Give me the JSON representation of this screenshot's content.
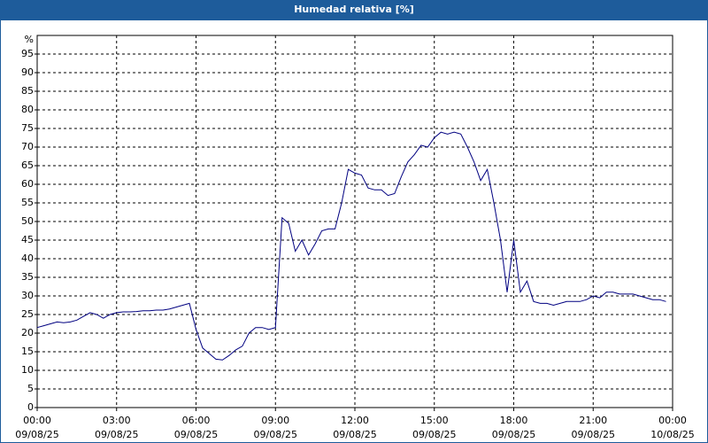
{
  "chart_data": {
    "type": "line",
    "title": "Humedad relativa [%]",
    "y_unit": "%",
    "xlim": [
      0,
      24
    ],
    "xticks": [
      {
        "value": 0,
        "label": "00:00"
      },
      {
        "value": 3,
        "label": "03:00"
      },
      {
        "value": 6,
        "label": "06:00"
      },
      {
        "value": 9,
        "label": "09:00"
      },
      {
        "value": 12,
        "label": "12:00"
      },
      {
        "value": 15,
        "label": "15:00"
      },
      {
        "value": 18,
        "label": "18:00"
      },
      {
        "value": 21,
        "label": "21:00"
      },
      {
        "value": 24,
        "label": "00:00"
      }
    ],
    "xtick_dates": [
      "09/08/25",
      "09/08/25",
      "09/08/25",
      "09/08/25",
      "09/08/25",
      "09/08/25",
      "09/08/25",
      "09/08/25",
      "10/08/25"
    ],
    "ylim": [
      0,
      100
    ],
    "yticks": [
      0,
      5,
      10,
      15,
      20,
      25,
      30,
      35,
      40,
      45,
      50,
      55,
      60,
      65,
      70,
      75,
      80,
      85,
      90,
      95
    ],
    "grid": true,
    "series": [
      {
        "color": "#000080",
        "x": [
          0,
          0.25,
          0.5,
          0.75,
          1,
          1.25,
          1.5,
          1.75,
          2,
          2.25,
          2.5,
          2.75,
          3,
          3.25,
          3.5,
          3.75,
          4,
          4.25,
          4.5,
          4.75,
          5,
          5.25,
          5.5,
          5.75,
          6,
          6.25,
          6.5,
          6.75,
          7,
          7.25,
          7.5,
          7.75,
          8,
          8.25,
          8.5,
          8.75,
          9,
          9.25,
          9.5,
          9.75,
          10,
          10.25,
          10.5,
          10.75,
          11,
          11.25,
          11.5,
          11.75,
          12,
          12.25,
          12.5,
          12.75,
          13,
          13.25,
          13.5,
          13.75,
          14,
          14.25,
          14.5,
          14.75,
          15,
          15.25,
          15.5,
          15.75,
          16,
          16.25,
          16.5,
          16.75,
          17,
          17.25,
          17.5,
          17.75,
          18,
          18.25,
          18.5,
          18.75,
          19,
          19.25,
          19.5,
          19.75,
          20,
          20.25,
          20.5,
          20.75,
          21,
          21.25,
          21.5,
          21.75,
          22,
          22.25,
          22.5,
          22.75,
          23,
          23.25,
          23.5,
          23.75
        ],
        "values": [
          21.5,
          22,
          22.5,
          23,
          22.8,
          23,
          23.5,
          24.5,
          25.5,
          25,
          24,
          25,
          25.5,
          25.7,
          25.7,
          25.8,
          26,
          26,
          26.2,
          26.2,
          26.5,
          27,
          27.5,
          28,
          21,
          16,
          14.5,
          13,
          12.8,
          14,
          15.5,
          16.5,
          20,
          21.5,
          21.5,
          21,
          21.5,
          51,
          49.5,
          42,
          45,
          41,
          44,
          47.5,
          48,
          48,
          55,
          64,
          63,
          62.5,
          59,
          58.5,
          58.5,
          57,
          57.5,
          62,
          66,
          68,
          70.5,
          70,
          72.5,
          74,
          73.5,
          74,
          73.5,
          70,
          66,
          61,
          64,
          55,
          45,
          31,
          45,
          31,
          34,
          28.5,
          28,
          28,
          27.5,
          28,
          28.5,
          28.5,
          28.5,
          29,
          30,
          29.5,
          31,
          31,
          30.5,
          30.5,
          30.5,
          30,
          29.5,
          29,
          29,
          28.5
        ]
      }
    ]
  }
}
